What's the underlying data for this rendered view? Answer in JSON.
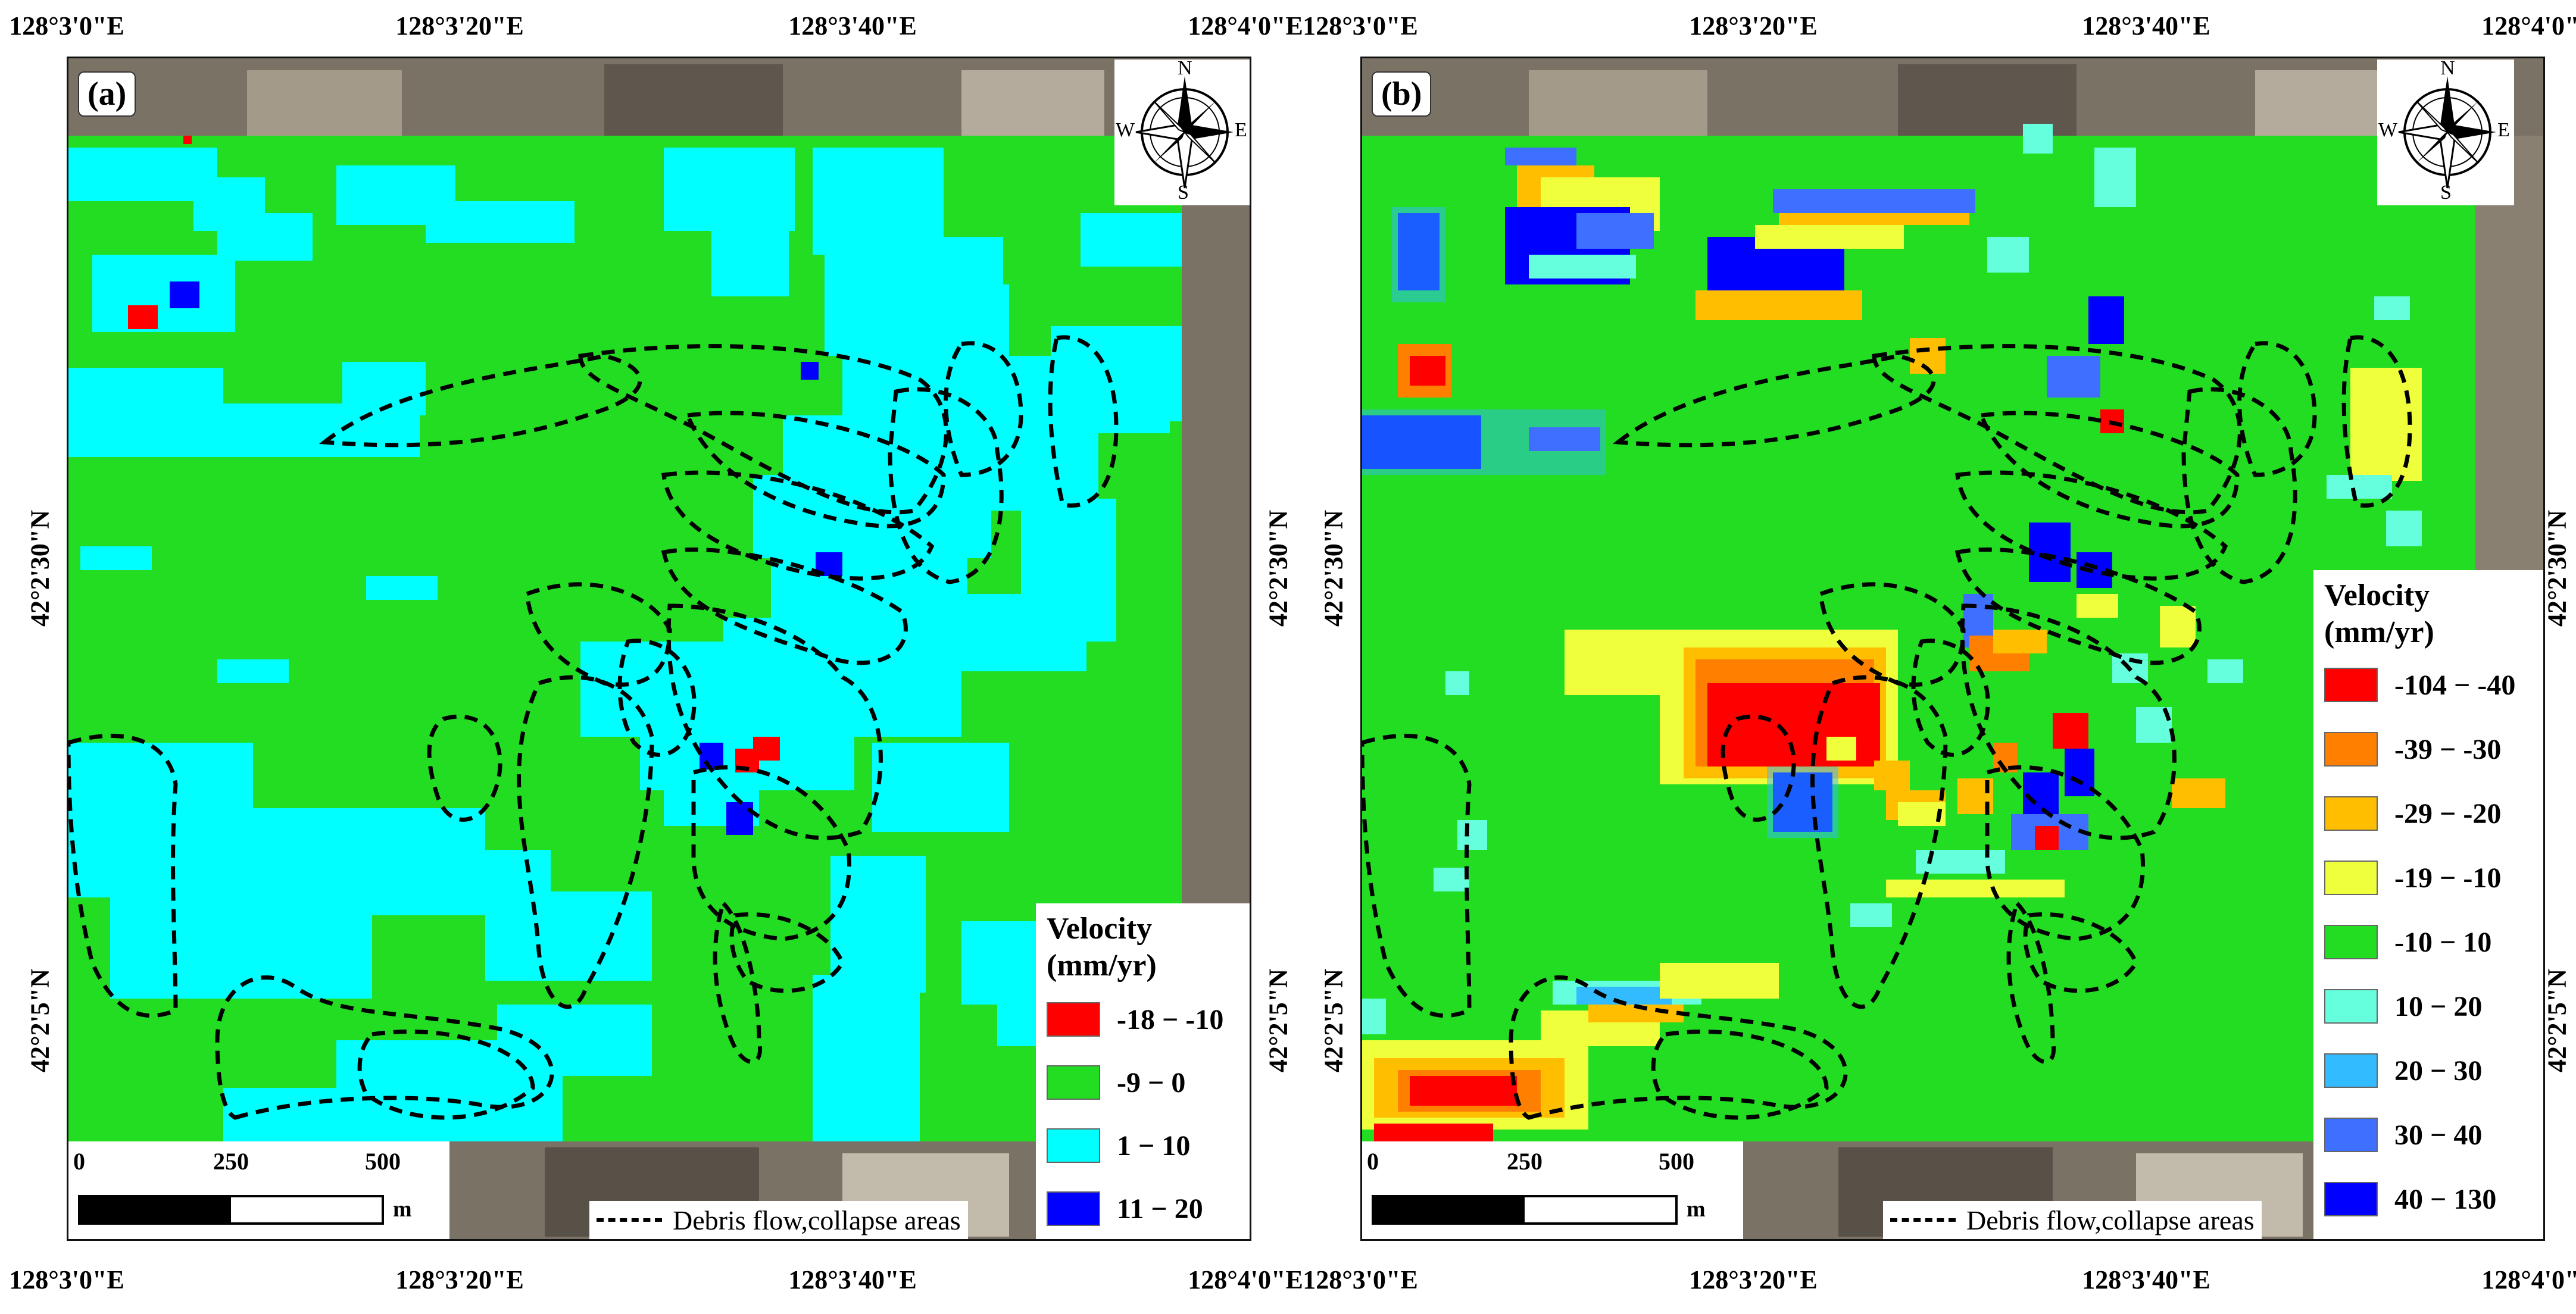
{
  "axis": {
    "lon_ticks": [
      "128°3'0\"E",
      "128°3'20\"E",
      "128°3'40\"E",
      "128°4'0\"E"
    ],
    "lat_ticks": [
      "42°2'30\"N",
      "42°2'5\"N"
    ]
  },
  "panel_a": {
    "label": "(a)",
    "legend_title": "Velocity",
    "legend_unit": "(mm/yr)",
    "classes": [
      {
        "range": "-18 − -10",
        "color": "#ff0000"
      },
      {
        "range": "-9 − 0",
        "color": "#22dd22"
      },
      {
        "range": "1 − 10",
        "color": "#00ffff"
      },
      {
        "range": "11 − 20",
        "color": "#0000ff"
      }
    ]
  },
  "panel_b": {
    "label": "(b)",
    "legend_title": "Velocity",
    "legend_unit": "(mm/yr)",
    "classes": [
      {
        "range": "-104 − -40",
        "color": "#ff0000"
      },
      {
        "range": "-39 − -30",
        "color": "#ff7f00"
      },
      {
        "range": "-29 − -20",
        "color": "#ffbf00"
      },
      {
        "range": "-19 − -10",
        "color": "#f0ff3c"
      },
      {
        "range": "-10 − 10",
        "color": "#22dd22"
      },
      {
        "range": "10 − 20",
        "color": "#66ffdd"
      },
      {
        "range": "20 − 30",
        "color": "#33bbff"
      },
      {
        "range": "30 − 40",
        "color": "#3f6fff"
      },
      {
        "range": "40 − 130",
        "color": "#0000ff"
      }
    ]
  },
  "compass": {
    "n": "N",
    "s": "S",
    "e": "E",
    "w": "W"
  },
  "scale": {
    "ticks": [
      "0",
      "250",
      "500"
    ],
    "unit": "m"
  },
  "debris_legend": "Debris flow,collapse areas"
}
